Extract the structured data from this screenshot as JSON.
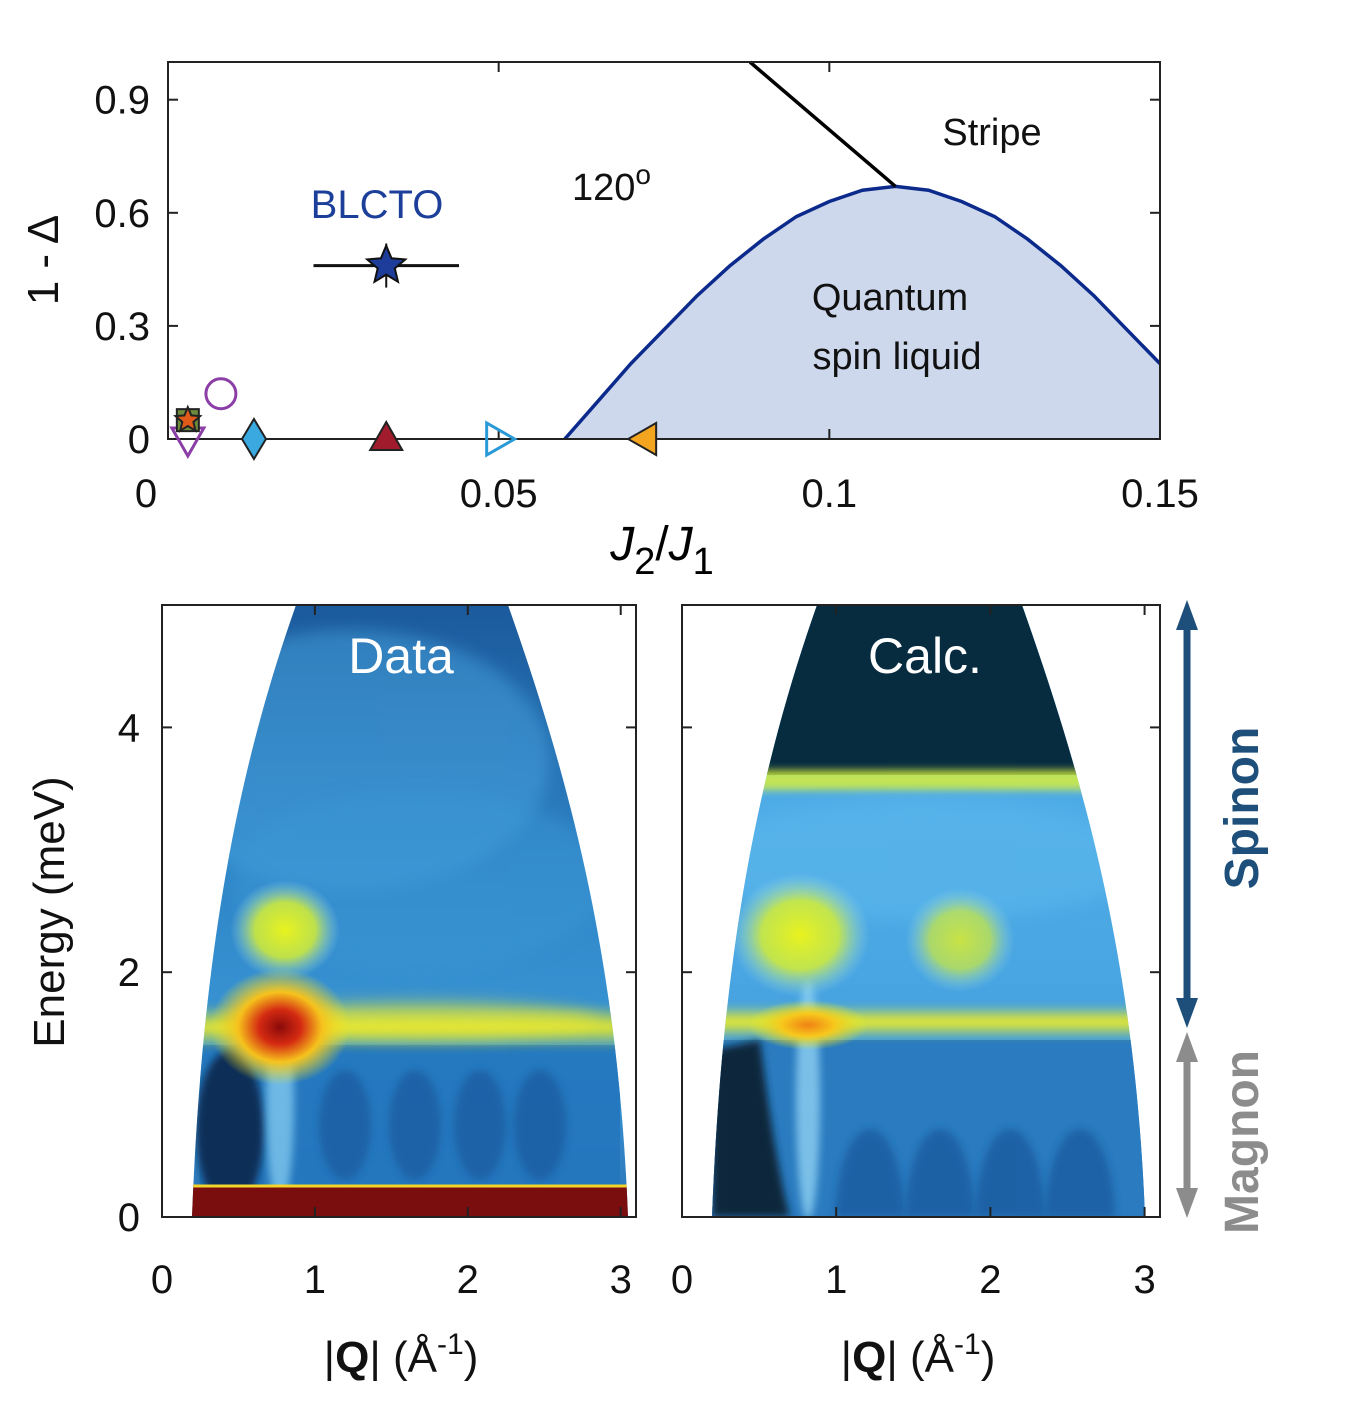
{
  "chart_data": [
    {
      "type": "scatter",
      "title": "",
      "xlabel_main": "J",
      "xlabel_sub1": "2",
      "xlabel_slash": "/",
      "xlabel_main2": "J",
      "xlabel_sub2": "1",
      "ylabel": "1 - Δ",
      "xlim": [
        0,
        0.15
      ],
      "ylim": [
        0,
        1.0
      ],
      "xticks": [
        0,
        0.05,
        0.1,
        0.15
      ],
      "xtick_labels": [
        "0",
        "0.05",
        "0.1",
        "0.15"
      ],
      "yticks": [
        0,
        0.3,
        0.6,
        0.9
      ],
      "ytick_labels": [
        "0",
        "0.3",
        "0.6",
        "0.9"
      ],
      "region_labels": {
        "stripe": "Stripe",
        "order_120": "120",
        "order_120_sup": "o",
        "qsl_line1": "Quantum",
        "qsl_line2": "spin liquid"
      },
      "qsl_boundary": {
        "x": [
          0.06,
          0.065,
          0.07,
          0.075,
          0.08,
          0.085,
          0.09,
          0.095,
          0.1,
          0.105,
          0.11,
          0.115,
          0.12,
          0.125,
          0.13,
          0.135,
          0.14,
          0.145,
          0.15
        ],
        "y": [
          0.0,
          0.1,
          0.2,
          0.29,
          0.38,
          0.46,
          0.53,
          0.59,
          0.63,
          0.66,
          0.67,
          0.66,
          0.63,
          0.59,
          0.53,
          0.46,
          0.38,
          0.29,
          0.2
        ],
        "color": "#0b2a8c",
        "fill": "#cdd8ec"
      },
      "phase_line": {
        "x": [
          0.088,
          0.11
        ],
        "y": [
          1.0,
          0.67
        ],
        "color": "#000000"
      },
      "blcto": {
        "label": "BLCTO",
        "label_color": "#1c3f9a",
        "x": 0.033,
        "y": 0.46,
        "xerr_low": 0.022,
        "xerr_high": 0.044,
        "marker": "star",
        "color": "#1e3c9a"
      },
      "markers": [
        {
          "x": 0.003,
          "y": 0.0,
          "marker": "triangle-down",
          "color": "#8b3fa6",
          "filled": false
        },
        {
          "x": 0.003,
          "y": 0.05,
          "marker": "square",
          "color": "#6e8b3d",
          "filled": true
        },
        {
          "x": 0.003,
          "y": 0.05,
          "marker": "star",
          "color": "#e05a1a",
          "filled": true
        },
        {
          "x": 0.008,
          "y": 0.12,
          "marker": "circle",
          "color": "#8b3fa6",
          "filled": false
        },
        {
          "x": 0.013,
          "y": 0.0,
          "marker": "diamond",
          "color": "#39a9e0",
          "filled": true
        },
        {
          "x": 0.033,
          "y": 0.0,
          "marker": "triangle-up",
          "color": "#a01c2c",
          "filled": true
        },
        {
          "x": 0.05,
          "y": 0.0,
          "marker": "triangle-right",
          "color": "#2a9ad6",
          "filled": false
        },
        {
          "x": 0.072,
          "y": 0.0,
          "marker": "triangle-left",
          "color": "#f3a520",
          "filled": true
        }
      ]
    },
    {
      "type": "heatmap",
      "title": "",
      "panel_label": "Data",
      "xlabel_bar": "|",
      "xlabel_q": "Q",
      "xlabel_bar2": "|",
      "xlabel_unit": " (Å",
      "xlabel_exp": "-1",
      "xlabel_close": ")",
      "ylabel": "Energy (meV)",
      "xlim": [
        0,
        3.1
      ],
      "ylim": [
        0,
        5
      ],
      "xticks": [
        0,
        1,
        2,
        3
      ],
      "xtick_labels": [
        "0",
        "1",
        "2",
        "3"
      ],
      "yticks": [
        0,
        2,
        4
      ],
      "ytick_labels": [
        "0",
        "2",
        "4"
      ],
      "magnon_band_energy": 1.6,
      "spinon_spot_energy": 2.3,
      "peak_q": 0.78,
      "elastic_line_energy": 0.2
    },
    {
      "type": "heatmap",
      "title": "",
      "panel_label": "Calc.",
      "xlabel_bar": "|",
      "xlabel_q": "Q",
      "xlabel_bar2": "|",
      "xlabel_unit": " (Å",
      "xlabel_exp": "-1",
      "xlabel_close": ")",
      "xlim": [
        0,
        3.1
      ],
      "ylim": [
        0,
        5
      ],
      "xticks": [
        0,
        1,
        2,
        3
      ],
      "xtick_labels": [
        "0",
        "1",
        "2",
        "3"
      ],
      "spinon_band_top_energy": 3.5,
      "magnon_band_energy": 1.6,
      "spinon_spot_energy": 2.2,
      "peak_q": 0.8
    }
  ],
  "annotations": {
    "spinon": {
      "label": "Spinon",
      "color": "#1d4f7a"
    },
    "magnon": {
      "label": "Magnon",
      "color": "#8c8c8c"
    }
  }
}
